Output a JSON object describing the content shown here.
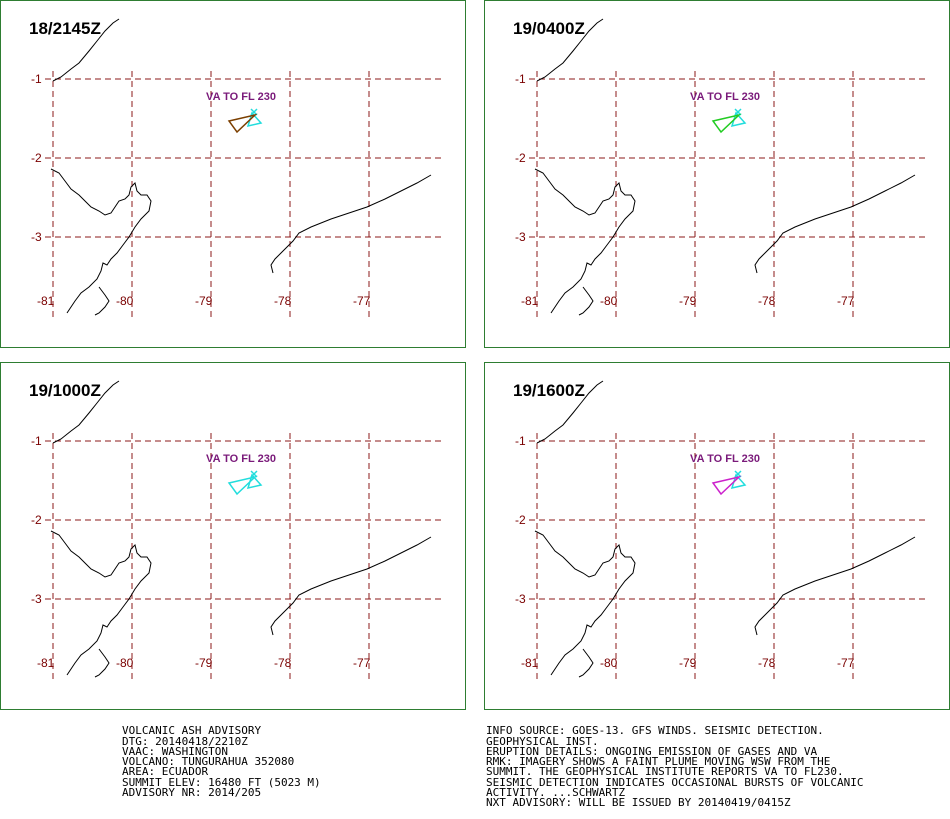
{
  "panels": [
    {
      "time": "18/2145Z",
      "va_label": "VA TO FL 230",
      "obs_color": "#7b3f00"
    },
    {
      "time": "19/0400Z",
      "va_label": "VA TO FL 230",
      "obs_color": "#22cc22"
    },
    {
      "time": "19/1000Z",
      "va_label": "VA TO FL 230",
      "obs_color": "#22dddd"
    },
    {
      "time": "19/1600Z",
      "va_label": "VA TO FL 230",
      "obs_color": "#cc22cc"
    }
  ],
  "grid": {
    "lon_labels": [
      "-81",
      "-80",
      "-79",
      "-78",
      "-77"
    ],
    "lat_labels": [
      "-1",
      "-2",
      "-3"
    ]
  },
  "colors": {
    "grid": "#8b1a1a",
    "coast": "#000000",
    "forecast": "#22dddd",
    "border": "#2e7d32"
  },
  "advisory_left": [
    "VOLCANIC ASH ADVISORY",
    "DTG: 20140418/2210Z",
    "VAAC: WASHINGTON",
    "VOLCANO: TUNGURAHUA 352080",
    "AREA: ECUADOR",
    "SUMMIT ELEV: 16480 FT (5023 M)",
    "ADVISORY NR: 2014/205"
  ],
  "advisory_right": [
    "INFO SOURCE: GOES-13. GFS WINDS. SEISMIC DETECTION.",
    "GEOPHYSICAL INST.",
    "ERUPTION DETAILS: ONGOING EMISSION OF GASES AND VA",
    "RMK: IMAGERY SHOWS A FAINT PLUME MOVING WSW FROM THE",
    "SUMMIT. THE GEOPHYSICAL INSTITUTE REPORTS VA TO FL230.",
    "SEISMIC DETECTION INDICATES OCCASIONAL BURSTS OF VOLCANIC",
    "ACTIVITY. ...SCHWARTZ",
    "NXT ADVISORY: WILL BE ISSUED BY 20140419/0415Z"
  ]
}
